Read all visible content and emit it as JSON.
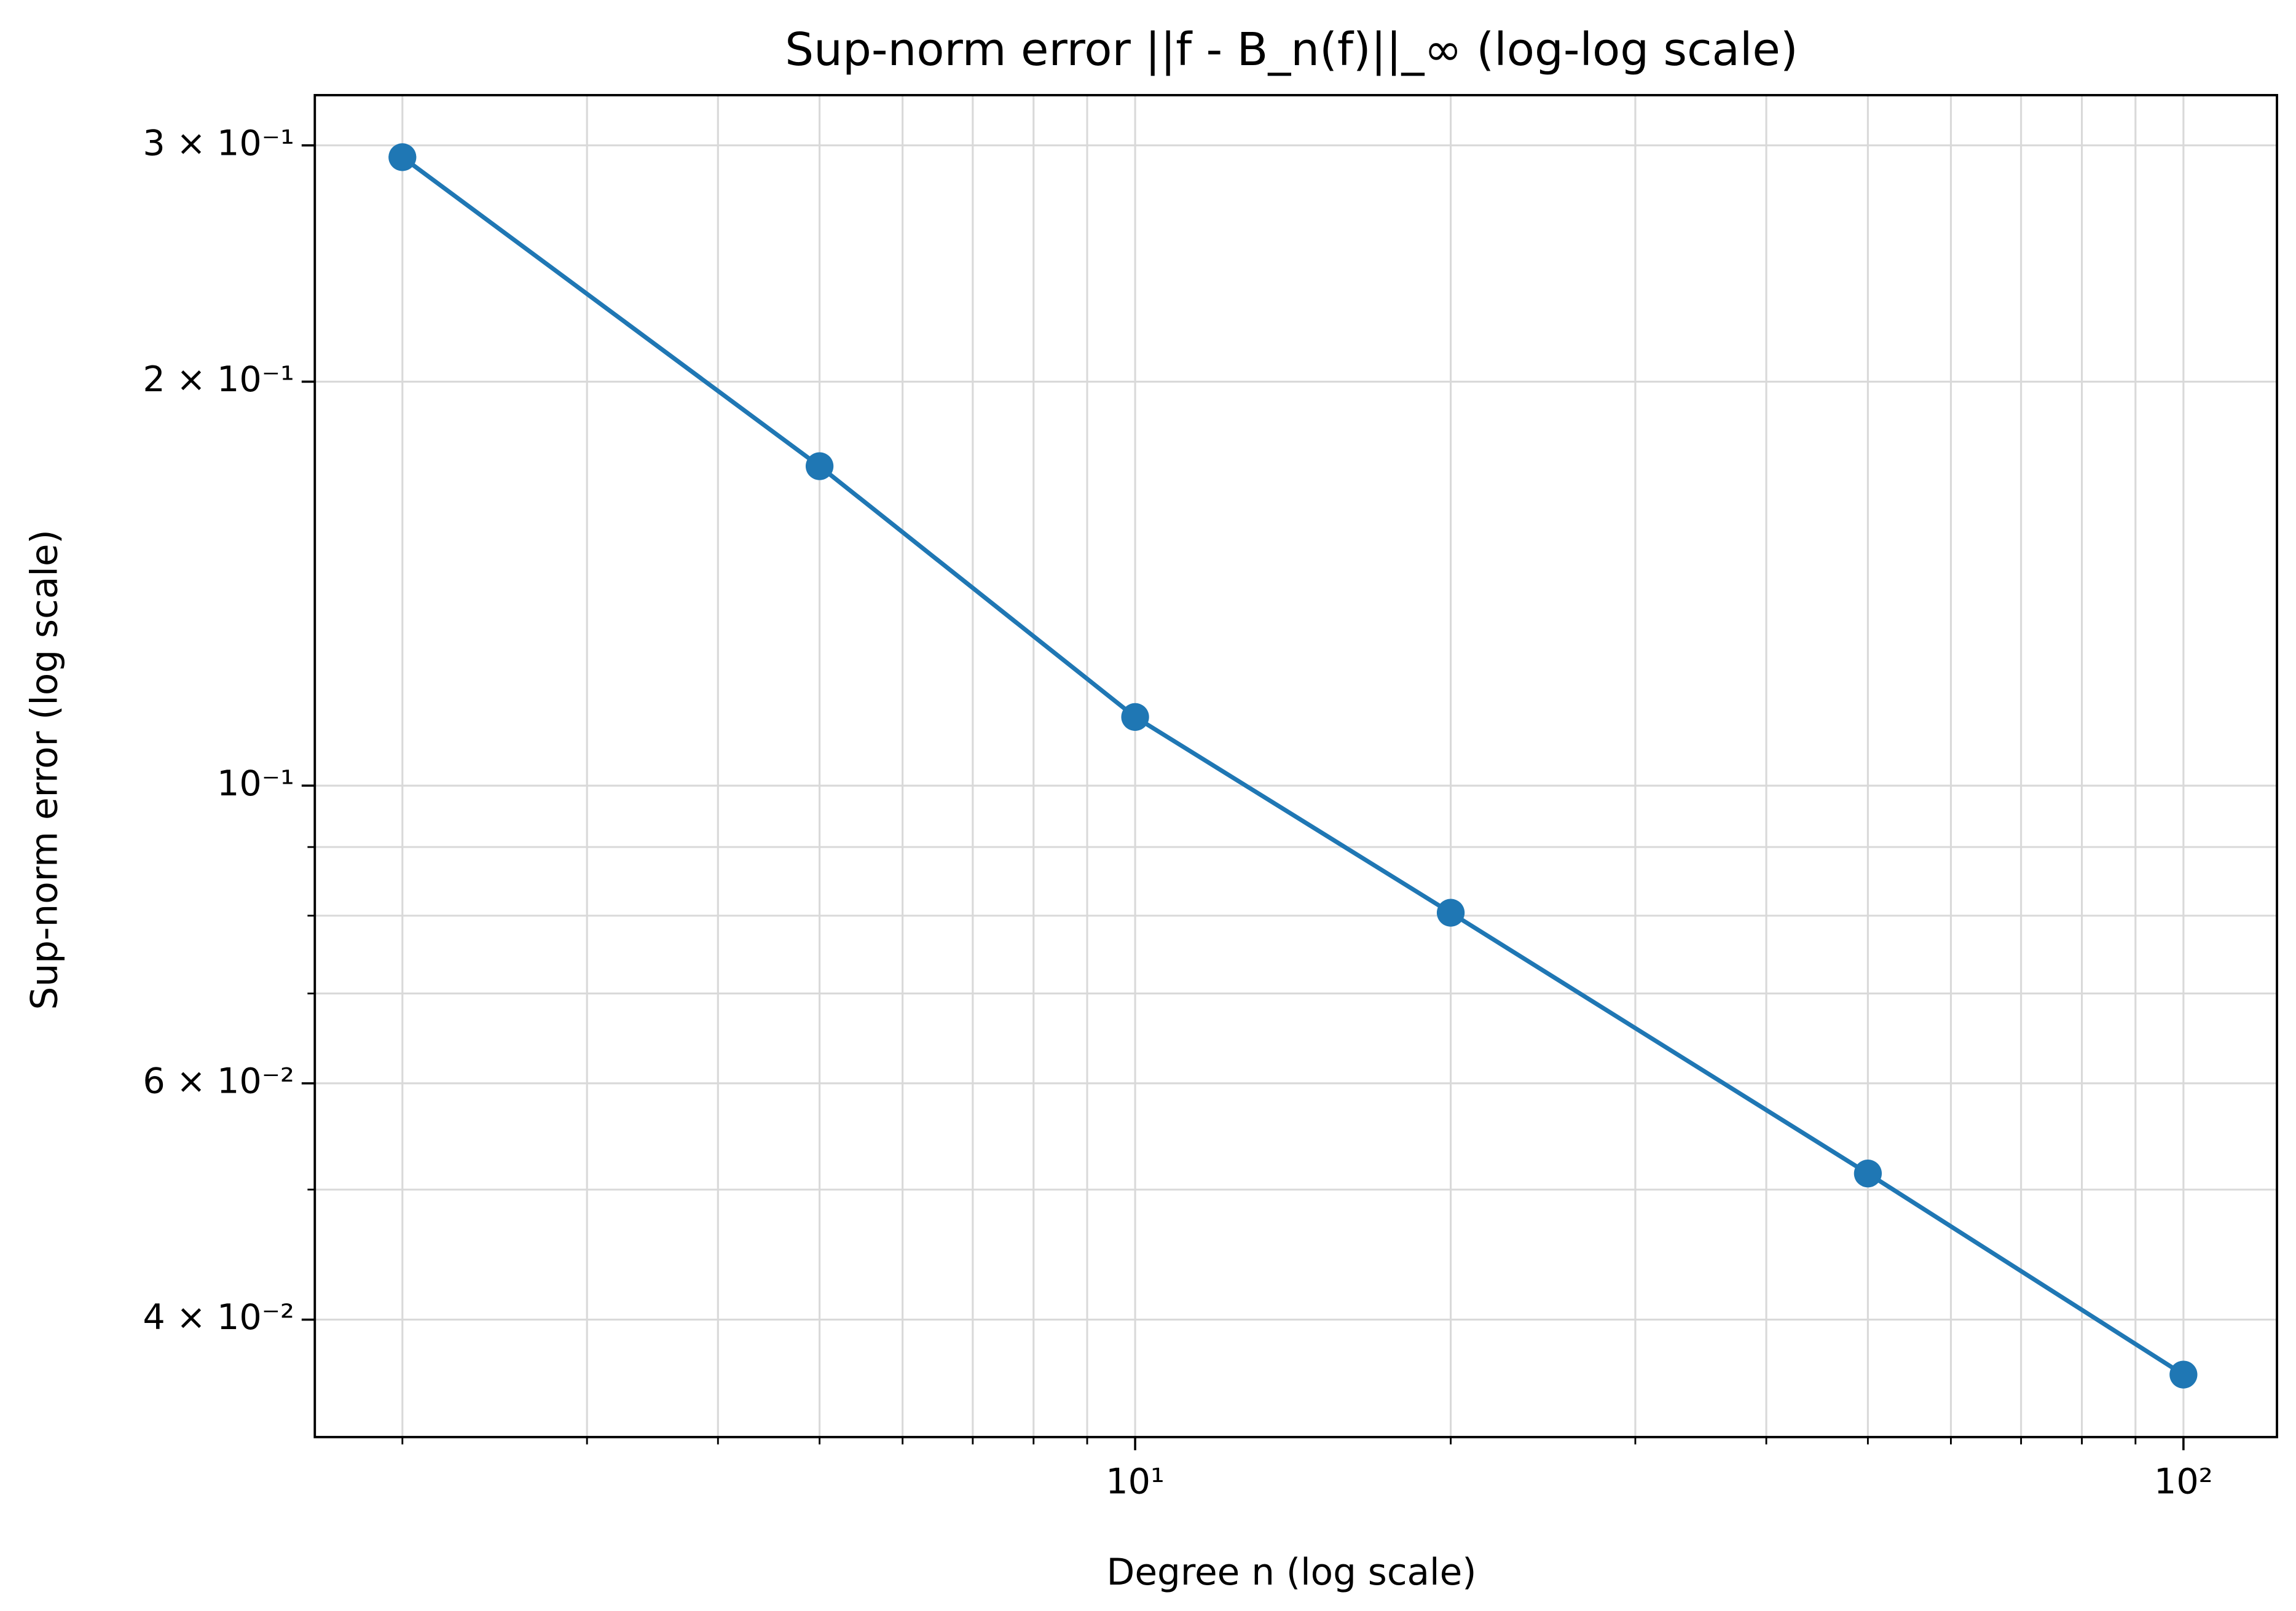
{
  "chart_data": {
    "type": "line",
    "title": "Sup-norm error ||f - B_n(f)||_∞  (log-log scale)",
    "x_label": "Degree n (log scale)",
    "y_label": "Sup-norm error (log scale)",
    "x": [
      2,
      5,
      10,
      20,
      50,
      100
    ],
    "series": [
      {
        "name": "Sup-norm error",
        "color": "#1f77b4",
        "values": [
          0.294,
          0.173,
          0.1125,
          0.0804,
          0.0514,
          0.0364
        ]
      }
    ],
    "xscale": "log",
    "yscale": "log",
    "xlim": [
      1.65,
      122.8
    ],
    "ylim": [
      0.0327,
      0.327
    ],
    "xticks": [
      {
        "value": 10,
        "label": "10¹"
      },
      {
        "value": 100,
        "label": "10²"
      }
    ],
    "xminorticks": [
      2,
      3,
      4,
      5,
      6,
      7,
      8,
      9,
      20,
      30,
      40,
      50,
      60,
      70,
      80,
      90
    ],
    "yticks": [
      {
        "value": 0.04,
        "label": "4 × 10⁻²"
      },
      {
        "value": 0.06,
        "label": "6 × 10⁻²"
      },
      {
        "value": 0.1,
        "label": "10⁻¹"
      },
      {
        "value": 0.2,
        "label": "2 × 10⁻¹"
      },
      {
        "value": 0.3,
        "label": "3 × 10⁻¹"
      }
    ],
    "yminorticks": [
      0.05,
      0.07,
      0.08,
      0.09
    ],
    "grid": true
  }
}
